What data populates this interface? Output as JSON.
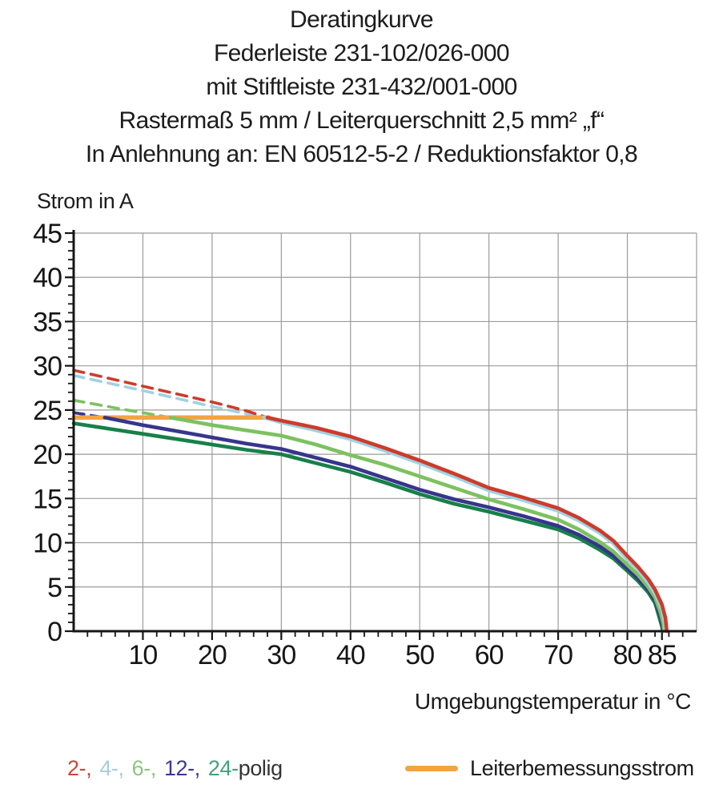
{
  "title": {
    "lines": [
      "Deratingkurve",
      "Federleiste 231-102/026-000",
      "mit Stiftleiste 231-432/001-000",
      "Rastermaß 5 mm / Leiterquerschnitt 2,5 mm² „f“",
      "In Anlehnung an: EN 60512-5-2 / Reduktionsfaktor 0,8"
    ]
  },
  "y_axis_title": "Strom in A",
  "x_axis_title": "Umgebungstemperatur in °C",
  "legend": {
    "poles_items": [
      {
        "label": "2-,",
        "color": "#c8463c"
      },
      {
        "label": "4-,",
        "color": "#a7cddd"
      },
      {
        "label": "6-,",
        "color": "#8cc47c"
      },
      {
        "label": "12-,",
        "color": "#3b3890"
      },
      {
        "label": "24-",
        "color": "#41a27a"
      }
    ],
    "poles_suffix": "polig",
    "rated_label": "Leiterbemessungsstrom",
    "rated_color": "#f3a440"
  },
  "chart_data": {
    "type": "line",
    "title": "Deratingkurve",
    "xlabel": "Umgebungstemperatur in °C",
    "ylabel": "Strom in A",
    "xlim": [
      0,
      90
    ],
    "ylim": [
      0,
      45
    ],
    "x_ticks": [
      10,
      20,
      30,
      40,
      50,
      60,
      70,
      80,
      85
    ],
    "y_ticks": [
      0,
      5,
      10,
      15,
      20,
      25,
      30,
      35,
      40,
      45
    ],
    "x_grid": [
      10,
      20,
      30,
      40,
      50,
      60,
      70,
      80,
      90
    ],
    "y_grid": [
      5,
      10,
      15,
      20,
      25,
      30,
      35,
      40,
      45
    ],
    "x_minor_step": 2,
    "y_minor_step": 1,
    "grid_color": "#9b9b9b",
    "axis_color": "#161616",
    "rated_current_line": {
      "name": "Leiterbemessungsstrom",
      "color": "#f3a440",
      "y": 24.15,
      "x_start": 0,
      "x_end": 28.2
    },
    "series": [
      {
        "name": "2-polig",
        "poles": 2,
        "color": "#ce3b2b",
        "dashed_points": [
          [
            0,
            29.5
          ],
          [
            5,
            28.6
          ],
          [
            10,
            27.7
          ],
          [
            15,
            26.8
          ],
          [
            20,
            25.9
          ],
          [
            25,
            24.9
          ],
          [
            28,
            24.15
          ]
        ],
        "solid_points": [
          [
            28,
            24.15
          ],
          [
            30,
            23.8
          ],
          [
            35,
            23.0
          ],
          [
            40,
            22.0
          ],
          [
            45,
            20.7
          ],
          [
            50,
            19.3
          ],
          [
            55,
            17.8
          ],
          [
            60,
            16.2
          ],
          [
            65,
            15.1
          ],
          [
            70,
            13.9
          ],
          [
            73,
            12.8
          ],
          [
            76,
            11.4
          ],
          [
            78,
            10.2
          ],
          [
            80,
            8.5
          ],
          [
            81.5,
            7.3
          ],
          [
            83,
            5.9
          ],
          [
            84,
            4.7
          ],
          [
            85,
            3.0
          ],
          [
            85.5,
            1.5
          ],
          [
            85.7,
            0
          ]
        ]
      },
      {
        "name": "4-polig",
        "poles": 4,
        "color": "#9fd2e2",
        "dashed_points": [
          [
            0,
            28.9
          ],
          [
            10,
            27.2
          ],
          [
            20,
            25.4
          ],
          [
            27.5,
            24.15
          ]
        ],
        "solid_points": [
          [
            27.5,
            24.15
          ],
          [
            30,
            23.6
          ],
          [
            35,
            22.7
          ],
          [
            40,
            21.7
          ],
          [
            45,
            20.4
          ],
          [
            50,
            19.0
          ],
          [
            55,
            17.5
          ],
          [
            60,
            15.9
          ],
          [
            65,
            14.8
          ],
          [
            70,
            13.6
          ],
          [
            73,
            12.5
          ],
          [
            76,
            11.1
          ],
          [
            78,
            9.9
          ],
          [
            80,
            8.1
          ],
          [
            81.5,
            7.0
          ],
          [
            83,
            5.5
          ],
          [
            84,
            4.3
          ],
          [
            85,
            2.5
          ],
          [
            85.4,
            1.0
          ],
          [
            85.5,
            0
          ]
        ]
      },
      {
        "name": "6-polig",
        "poles": 6,
        "color": "#7dc161",
        "dashed_points": [
          [
            0,
            26.1
          ],
          [
            7,
            25.1
          ],
          [
            14,
            24.15
          ]
        ],
        "solid_points": [
          [
            14,
            24.15
          ],
          [
            20,
            23.3
          ],
          [
            25,
            22.7
          ],
          [
            30,
            22.1
          ],
          [
            35,
            21.1
          ],
          [
            40,
            19.9
          ],
          [
            45,
            18.8
          ],
          [
            50,
            17.5
          ],
          [
            55,
            16.2
          ],
          [
            60,
            14.9
          ],
          [
            65,
            13.8
          ],
          [
            70,
            12.6
          ],
          [
            73,
            11.5
          ],
          [
            76,
            10.1
          ],
          [
            78,
            9.0
          ],
          [
            80,
            7.5
          ],
          [
            81.5,
            6.4
          ],
          [
            83,
            5.0
          ],
          [
            84,
            3.8
          ],
          [
            84.8,
            2.1
          ],
          [
            85.2,
            0.8
          ],
          [
            85.3,
            0
          ]
        ]
      },
      {
        "name": "12-polig",
        "poles": 12,
        "color": "#37358c",
        "dashed_points": [
          [
            0,
            24.7
          ],
          [
            4.5,
            24.15
          ]
        ],
        "solid_points": [
          [
            4.5,
            24.15
          ],
          [
            10,
            23.3
          ],
          [
            15,
            22.6
          ],
          [
            20,
            21.9
          ],
          [
            25,
            21.2
          ],
          [
            30,
            20.6
          ],
          [
            35,
            19.6
          ],
          [
            40,
            18.6
          ],
          [
            45,
            17.3
          ],
          [
            50,
            16.0
          ],
          [
            55,
            14.9
          ],
          [
            60,
            14.0
          ],
          [
            65,
            13.0
          ],
          [
            70,
            11.9
          ],
          [
            73,
            10.9
          ],
          [
            76,
            9.6
          ],
          [
            78,
            8.5
          ],
          [
            80,
            7.1
          ],
          [
            81.5,
            6.0
          ],
          [
            83,
            4.7
          ],
          [
            84,
            3.5
          ],
          [
            84.7,
            1.9
          ],
          [
            85.1,
            0.6
          ],
          [
            85.2,
            0
          ]
        ]
      },
      {
        "name": "24-polig",
        "poles": 24,
        "color": "#17804a",
        "dashed_points": [],
        "solid_points": [
          [
            0,
            23.5
          ],
          [
            5,
            22.9
          ],
          [
            10,
            22.3
          ],
          [
            15,
            21.7
          ],
          [
            20,
            21.1
          ],
          [
            25,
            20.5
          ],
          [
            30,
            20.0
          ],
          [
            35,
            19.0
          ],
          [
            40,
            18.0
          ],
          [
            45,
            16.8
          ],
          [
            50,
            15.5
          ],
          [
            55,
            14.4
          ],
          [
            60,
            13.5
          ],
          [
            65,
            12.5
          ],
          [
            70,
            11.5
          ],
          [
            73,
            10.5
          ],
          [
            76,
            9.2
          ],
          [
            78,
            8.2
          ],
          [
            80,
            6.8
          ],
          [
            81.5,
            5.7
          ],
          [
            83,
            4.4
          ],
          [
            84,
            3.2
          ],
          [
            84.6,
            1.6
          ],
          [
            85,
            0.5
          ],
          [
            85.1,
            0
          ]
        ]
      }
    ]
  }
}
